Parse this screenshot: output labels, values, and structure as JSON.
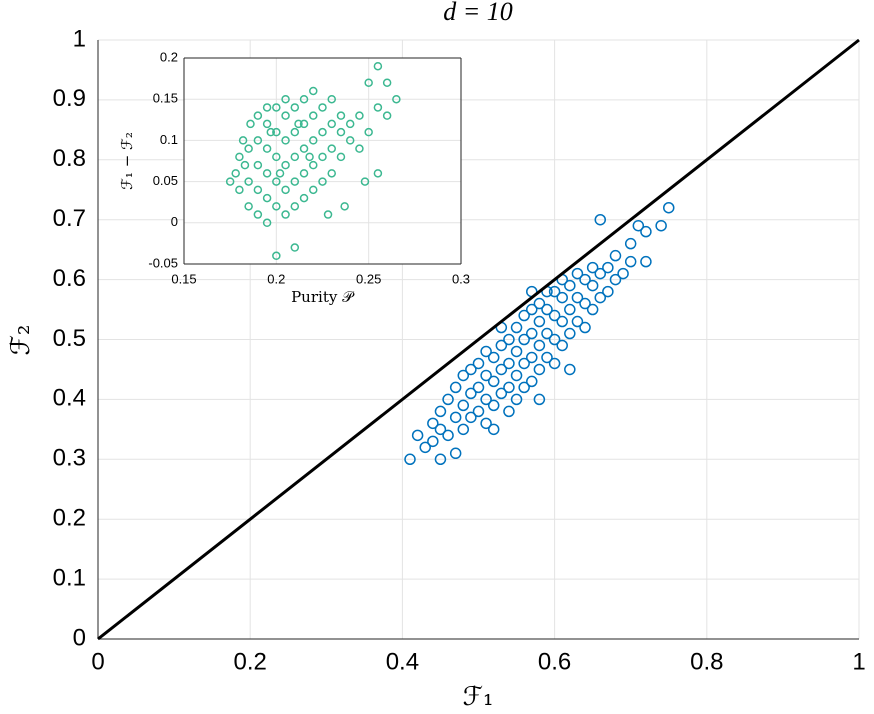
{
  "chart_data": [
    {
      "type": "scatter",
      "title": "d = 10",
      "xlabel": "ℱ₁",
      "ylabel": "ℱ₂",
      "xlim": [
        0,
        1
      ],
      "ylim": [
        0,
        1
      ],
      "xticks": [
        0,
        0.2,
        0.4,
        0.6,
        0.8,
        1
      ],
      "yticks": [
        0,
        0.1,
        0.2,
        0.3,
        0.4,
        0.5,
        0.6,
        0.7,
        0.8,
        0.9,
        1
      ],
      "grid": true,
      "series": [
        {
          "color": "#0072bd",
          "x": [
            0.41,
            0.42,
            0.43,
            0.44,
            0.44,
            0.45,
            0.45,
            0.46,
            0.46,
            0.47,
            0.47,
            0.48,
            0.48,
            0.48,
            0.49,
            0.49,
            0.49,
            0.5,
            0.5,
            0.5,
            0.51,
            0.51,
            0.51,
            0.51,
            0.52,
            0.52,
            0.52,
            0.53,
            0.53,
            0.53,
            0.54,
            0.54,
            0.54,
            0.54,
            0.55,
            0.55,
            0.55,
            0.55,
            0.56,
            0.56,
            0.56,
            0.56,
            0.57,
            0.57,
            0.57,
            0.57,
            0.58,
            0.58,
            0.58,
            0.58,
            0.59,
            0.59,
            0.59,
            0.59,
            0.6,
            0.6,
            0.6,
            0.6,
            0.61,
            0.61,
            0.61,
            0.61,
            0.62,
            0.62,
            0.62,
            0.63,
            0.63,
            0.63,
            0.64,
            0.64,
            0.64,
            0.65,
            0.65,
            0.65,
            0.66,
            0.66,
            0.67,
            0.67,
            0.68,
            0.68,
            0.69,
            0.7,
            0.7,
            0.72,
            0.75,
            0.71,
            0.66,
            0.57,
            0.53,
            0.62,
            0.58,
            0.45,
            0.47,
            0.52,
            0.74,
            0.72
          ],
          "values": [
            0.3,
            0.34,
            0.32,
            0.36,
            0.33,
            0.38,
            0.35,
            0.34,
            0.4,
            0.37,
            0.42,
            0.35,
            0.39,
            0.44,
            0.37,
            0.41,
            0.45,
            0.38,
            0.42,
            0.46,
            0.36,
            0.4,
            0.44,
            0.48,
            0.39,
            0.43,
            0.47,
            0.41,
            0.45,
            0.49,
            0.38,
            0.42,
            0.46,
            0.5,
            0.4,
            0.44,
            0.48,
            0.52,
            0.42,
            0.46,
            0.5,
            0.54,
            0.43,
            0.47,
            0.51,
            0.55,
            0.45,
            0.49,
            0.53,
            0.56,
            0.47,
            0.51,
            0.55,
            0.58,
            0.46,
            0.5,
            0.54,
            0.58,
            0.49,
            0.53,
            0.57,
            0.6,
            0.51,
            0.55,
            0.59,
            0.53,
            0.57,
            0.61,
            0.52,
            0.56,
            0.6,
            0.55,
            0.59,
            0.62,
            0.57,
            0.61,
            0.58,
            0.62,
            0.6,
            0.64,
            0.61,
            0.63,
            0.66,
            0.68,
            0.72,
            0.69,
            0.7,
            0.58,
            0.52,
            0.45,
            0.4,
            0.3,
            0.31,
            0.35,
            0.69,
            0.63
          ]
        },
        {
          "type": "line",
          "color": "#000000",
          "x": [
            0,
            1
          ],
          "values": [
            0,
            1
          ]
        }
      ]
    },
    {
      "type": "scatter",
      "xlabel": "Purity 𝒫",
      "ylabel": "ℱ₁ − ℱ₂",
      "xlim": [
        0.15,
        0.3
      ],
      "ylim": [
        -0.05,
        0.2
      ],
      "xticks": [
        0.15,
        0.2,
        0.25,
        0.3
      ],
      "yticks": [
        -0.05,
        0,
        0.05,
        0.1,
        0.15,
        0.2
      ],
      "grid": true,
      "series": [
        {
          "color": "#3cb891",
          "x": [
            0.178,
            0.18,
            0.18,
            0.182,
            0.185,
            0.185,
            0.185,
            0.186,
            0.19,
            0.19,
            0.19,
            0.19,
            0.19,
            0.195,
            0.195,
            0.195,
            0.195,
            0.195,
            0.195,
            0.2,
            0.2,
            0.2,
            0.2,
            0.2,
            0.205,
            0.205,
            0.205,
            0.205,
            0.205,
            0.205,
            0.21,
            0.21,
            0.21,
            0.21,
            0.21,
            0.215,
            0.215,
            0.215,
            0.215,
            0.215,
            0.22,
            0.22,
            0.22,
            0.22,
            0.22,
            0.225,
            0.225,
            0.225,
            0.225,
            0.23,
            0.23,
            0.23,
            0.23,
            0.235,
            0.235,
            0.235,
            0.24,
            0.24,
            0.245,
            0.245,
            0.25,
            0.255,
            0.26,
            0.265,
            0.25,
            0.248,
            0.237,
            0.2,
            0.21,
            0.228,
            0.255,
            0.26,
            0.255,
            0.175,
            0.183,
            0.197,
            0.212,
            0.202,
            0.218
          ],
          "values": [
            0.06,
            0.04,
            0.08,
            0.1,
            0.02,
            0.05,
            0.09,
            0.12,
            0.01,
            0.04,
            0.07,
            0.1,
            0.13,
            0.0,
            0.03,
            0.06,
            0.09,
            0.12,
            0.14,
            0.02,
            0.05,
            0.08,
            0.11,
            0.14,
            0.01,
            0.04,
            0.07,
            0.1,
            0.13,
            0.15,
            0.02,
            0.05,
            0.08,
            0.11,
            0.14,
            0.03,
            0.06,
            0.09,
            0.12,
            0.15,
            0.04,
            0.07,
            0.1,
            0.13,
            0.16,
            0.05,
            0.08,
            0.11,
            0.14,
            0.06,
            0.09,
            0.12,
            0.15,
            0.08,
            0.11,
            0.13,
            0.1,
            0.12,
            0.09,
            0.13,
            0.11,
            0.14,
            0.17,
            0.15,
            0.17,
            0.05,
            0.02,
            -0.04,
            -0.03,
            0.01,
            0.06,
            0.13,
            0.19,
            0.05,
            0.07,
            0.11,
            0.12,
            0.06,
            0.08
          ]
        }
      ]
    }
  ]
}
